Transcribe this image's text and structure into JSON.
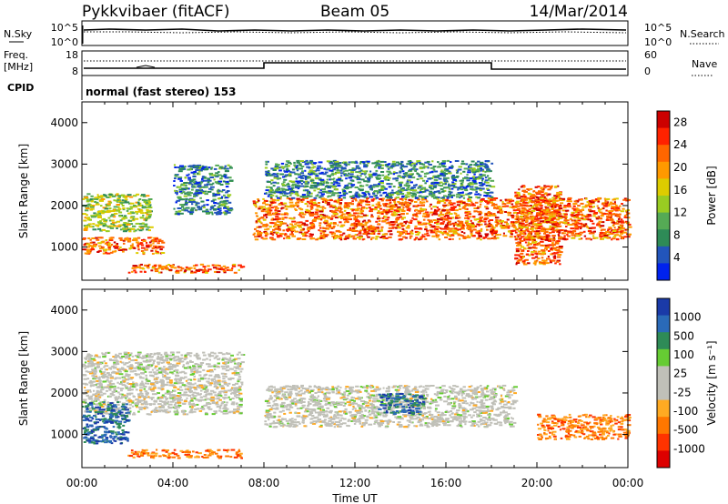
{
  "header": {
    "title": "Pykkvibaer (fitACF)",
    "beam": "Beam 05",
    "date": "14/Mar/2014"
  },
  "top_panels": {
    "nsky_label": "N.Sky",
    "nsky_ticks": [
      "10^5",
      "10^0"
    ],
    "nsky_right_ticks": [
      "10^5",
      "10^0"
    ],
    "nsearch_label": "N.Search",
    "freq_label_1": "Freq.",
    "freq_label_2": "[MHz]",
    "freq_ticks": [
      "18",
      "8"
    ],
    "nave_ticks": [
      "60",
      "0"
    ],
    "nave_label": "Nave",
    "cpid_label": "CPID",
    "cpid_text": "normal (fast stereo) 153"
  },
  "x_axis": {
    "label": "Time UT",
    "ticks": [
      "00:00",
      "04:00",
      "08:00",
      "12:00",
      "16:00",
      "20:00",
      "00:00"
    ]
  },
  "colors": {
    "power": [
      "#0022ee",
      "#2255bb",
      "#2e8b57",
      "#55aa55",
      "#99cc22",
      "#ddcc00",
      "#ff9900",
      "#ff6600",
      "#ff2200",
      "#cc0000"
    ],
    "velocity": [
      "#1a3aa8",
      "#2a6ab8",
      "#2e8b57",
      "#66cc33",
      "#c0c0b8",
      "#c0c0b8",
      "#ffaa22",
      "#ff7700",
      "#ff3300",
      "#dd0000"
    ]
  },
  "chart_data": [
    {
      "type": "heatmap",
      "panel": "power",
      "ylabel": "Slant Range [km]",
      "yticks": [
        1000,
        2000,
        3000,
        4000
      ],
      "ylim": [
        200,
        4500
      ],
      "xlim": [
        0,
        24
      ],
      "colorbar_label": "Power [dB]",
      "colorbar_ticks": [
        4,
        8,
        12,
        16,
        20,
        24,
        28
      ],
      "colorbar_range": [
        0,
        30
      ],
      "features": [
        {
          "t": [
            0,
            3.5
          ],
          "range": [
            850,
            1250
          ],
          "level": "high"
        },
        {
          "t": [
            0,
            3
          ],
          "range": [
            1400,
            2300
          ],
          "level": "medium"
        },
        {
          "t": [
            2,
            7
          ],
          "range": [
            400,
            600
          ],
          "level": "high"
        },
        {
          "t": [
            7.5,
            24
          ],
          "range": [
            1200,
            2200
          ],
          "level": "high"
        },
        {
          "t": [
            4,
            6.5
          ],
          "range": [
            1800,
            3000
          ],
          "level": "low"
        },
        {
          "t": [
            8,
            18
          ],
          "range": [
            2200,
            3100
          ],
          "level": "low"
        },
        {
          "t": [
            19,
            21
          ],
          "range": [
            600,
            2500
          ],
          "level": "high"
        }
      ]
    },
    {
      "type": "heatmap",
      "panel": "velocity",
      "ylabel": "Slant Range [km]",
      "yticks": [
        1000,
        2000,
        3000,
        4000
      ],
      "ylim": [
        200,
        4500
      ],
      "xlim": [
        0,
        24
      ],
      "colorbar_label": "Velocity [m s^-1]",
      "colorbar_ticks": [
        1000,
        500,
        100,
        25,
        -25,
        -100,
        -500,
        -1000
      ],
      "features": [
        {
          "t": [
            0,
            7
          ],
          "range": [
            1500,
            3000
          ],
          "velocity": "near-zero"
        },
        {
          "t": [
            0,
            2
          ],
          "range": [
            800,
            1800
          ],
          "velocity": "positive"
        },
        {
          "t": [
            2,
            7
          ],
          "range": [
            450,
            650
          ],
          "velocity": "negative"
        },
        {
          "t": [
            8,
            19
          ],
          "range": [
            1200,
            2200
          ],
          "velocity": "near-zero"
        },
        {
          "t": [
            13,
            15
          ],
          "range": [
            1500,
            2000
          ],
          "velocity": "positive"
        },
        {
          "t": [
            20,
            24
          ],
          "range": [
            900,
            1500
          ],
          "velocity": "negative"
        }
      ]
    }
  ]
}
